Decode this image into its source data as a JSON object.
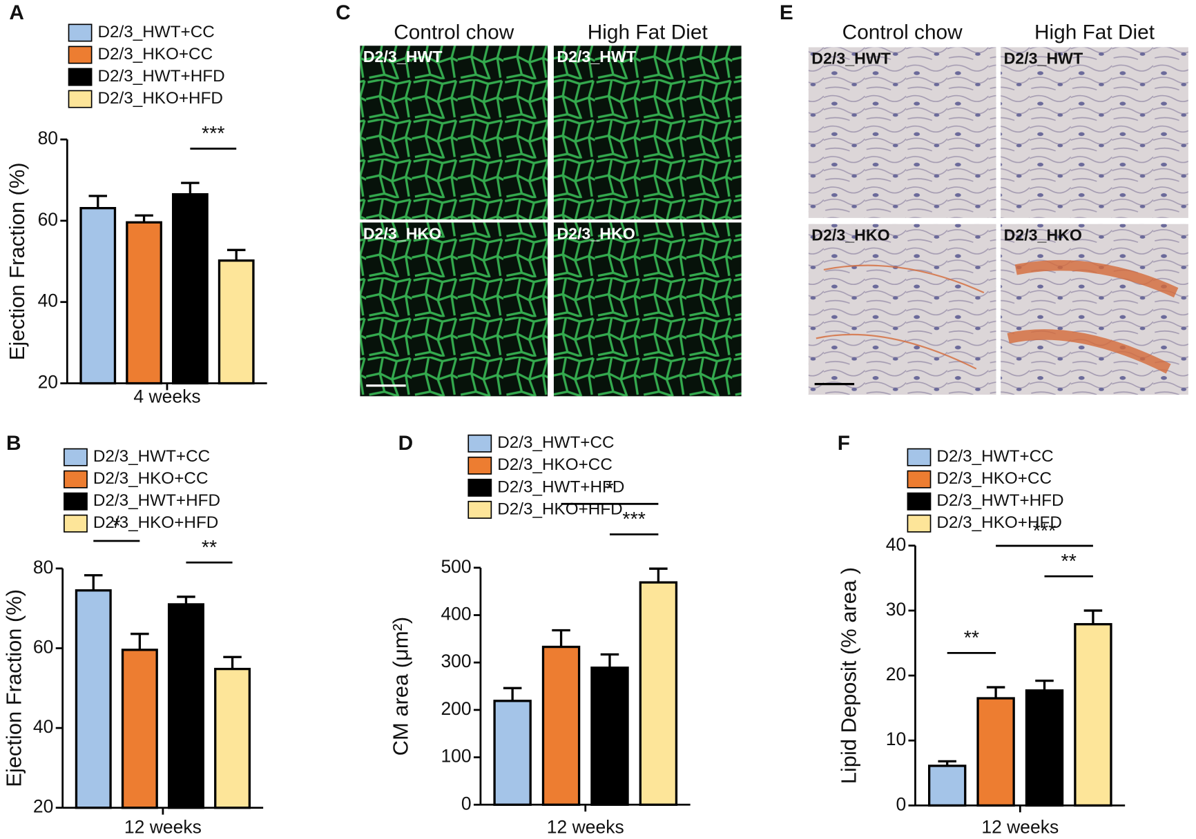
{
  "chart_data": [
    {
      "type": "bar",
      "panel": "A",
      "ylabel": "Ejection Fraction (%)",
      "categories": [
        "4 weeks"
      ],
      "ylim": [
        20,
        80
      ],
      "yticks": [
        20,
        40,
        60,
        80
      ],
      "series": [
        {
          "name": "D2/3_HWT+CC",
          "color": "#a4c4e8",
          "values": [
            63.1
          ],
          "errors": [
            3.0
          ]
        },
        {
          "name": "D2/3_HKO+CC",
          "color": "#ed7d31",
          "values": [
            59.6
          ],
          "errors": [
            1.7
          ]
        },
        {
          "name": "D2/3_HWT+HFD",
          "color": "#000000",
          "values": [
            66.5
          ],
          "errors": [
            2.8
          ]
        },
        {
          "name": "D2/3_HKO+HFD",
          "color": "#fde599",
          "values": [
            50.2
          ],
          "errors": [
            2.6
          ]
        }
      ],
      "significance": [
        {
          "label": "***",
          "from": 2,
          "to": 3
        }
      ]
    },
    {
      "type": "bar",
      "panel": "B",
      "ylabel": "Ejection Fraction (%)",
      "categories": [
        "12 weeks"
      ],
      "ylim": [
        20,
        80
      ],
      "yticks": [
        20,
        40,
        60,
        80
      ],
      "series": [
        {
          "name": "D2/3_HWT+CC",
          "color": "#a4c4e8",
          "values": [
            74.5
          ],
          "errors": [
            3.8
          ]
        },
        {
          "name": "D2/3_HKO+CC",
          "color": "#ed7d31",
          "values": [
            59.6
          ],
          "errors": [
            4.0
          ]
        },
        {
          "name": "D2/3_HWT+HFD",
          "color": "#000000",
          "values": [
            71.0
          ],
          "errors": [
            1.9
          ]
        },
        {
          "name": "D2/3_HKO+HFD",
          "color": "#fde599",
          "values": [
            54.8
          ],
          "errors": [
            3.0
          ]
        }
      ],
      "significance": [
        {
          "label": "*",
          "from": 0,
          "to": 1
        },
        {
          "label": "**",
          "from": 2,
          "to": 3
        }
      ]
    },
    {
      "type": "bar",
      "panel": "D",
      "ylabel": "CM area (μm²)",
      "categories": [
        "12 weeks"
      ],
      "ylim": [
        0,
        500
      ],
      "yticks": [
        0,
        100,
        200,
        300,
        400,
        500
      ],
      "series": [
        {
          "name": "D2/3_HWT+CC",
          "color": "#a4c4e8",
          "values": [
            219
          ],
          "errors": [
            27
          ]
        },
        {
          "name": "D2/3_HKO+CC",
          "color": "#ed7d31",
          "values": [
            333
          ],
          "errors": [
            35
          ]
        },
        {
          "name": "D2/3_HWT+HFD",
          "color": "#000000",
          "values": [
            289
          ],
          "errors": [
            28
          ]
        },
        {
          "name": "D2/3_HKO+HFD",
          "color": "#fde599",
          "values": [
            469
          ],
          "errors": [
            29
          ]
        }
      ],
      "significance": [
        {
          "label": "***",
          "from": 2,
          "to": 3
        },
        {
          "label": "*",
          "from": 1,
          "to": 3
        }
      ]
    },
    {
      "type": "bar",
      "panel": "F",
      "ylabel": "Lipid Deposit (% area )",
      "categories": [
        "12 weeks"
      ],
      "ylim": [
        0,
        40
      ],
      "yticks": [
        0,
        10,
        20,
        30,
        40
      ],
      "series": [
        {
          "name": "D2/3_HWT+CC",
          "color": "#a4c4e8",
          "values": [
            6.1
          ],
          "errors": [
            0.7
          ]
        },
        {
          "name": "D2/3_HKO+CC",
          "color": "#ed7d31",
          "values": [
            16.5
          ],
          "errors": [
            1.7
          ]
        },
        {
          "name": "D2/3_HWT+HFD",
          "color": "#000000",
          "values": [
            17.7
          ],
          "errors": [
            1.5
          ]
        },
        {
          "name": "D2/3_HKO+HFD",
          "color": "#fde599",
          "values": [
            27.9
          ],
          "errors": [
            2.1
          ]
        }
      ],
      "significance": [
        {
          "label": "**",
          "from": 0,
          "to": 1
        },
        {
          "label": "**",
          "from": 2,
          "to": 3
        },
        {
          "label": "***",
          "from": 1,
          "to": 3
        }
      ]
    }
  ],
  "image_panels": [
    {
      "panel": "C",
      "columns": [
        "Control chow",
        "High Fat Diet"
      ],
      "tiles": [
        [
          "D2/3_HWT",
          "D2/3_HWT"
        ],
        [
          "D2/3_HKO",
          "D2/3_HKO"
        ]
      ]
    },
    {
      "panel": "E",
      "columns": [
        "Control chow",
        "High Fat Diet"
      ],
      "tiles": [
        [
          "D2/3_HWT",
          "D2/3_HWT"
        ],
        [
          "D2/3_HKO",
          "D2/3_HKO"
        ]
      ]
    }
  ]
}
